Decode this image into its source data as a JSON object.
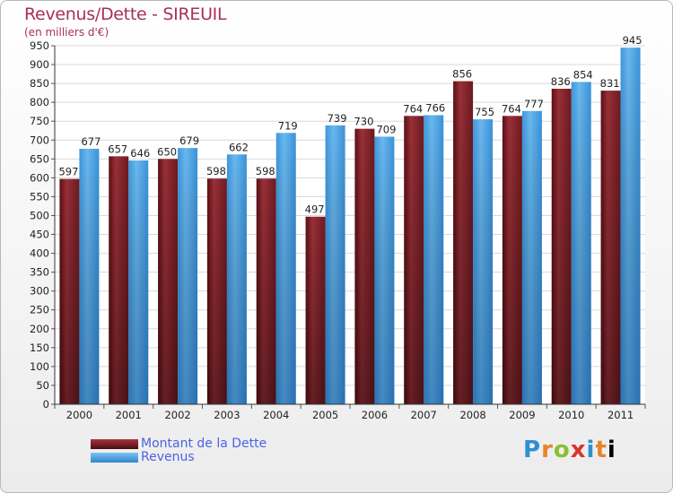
{
  "chart_data": {
    "type": "bar",
    "title": "Revenus/Dette - SIREUIL",
    "subtitle": "(en milliers d'€)",
    "categories": [
      "2000",
      "2001",
      "2002",
      "2003",
      "2004",
      "2005",
      "2006",
      "2007",
      "2008",
      "2009",
      "2010",
      "2011"
    ],
    "series": [
      {
        "name": "Montant de la Dette",
        "color": "#7a1f24",
        "values": [
          597,
          657,
          650,
          598,
          598,
          497,
          730,
          764,
          856,
          764,
          836,
          831
        ]
      },
      {
        "name": "Revenus",
        "color": "#4ba8e8",
        "values": [
          677,
          646,
          679,
          662,
          719,
          739,
          709,
          766,
          755,
          777,
          854,
          945
        ]
      }
    ],
    "ylim": [
      0,
      950
    ],
    "ytick_step": 50,
    "grid": true,
    "legend_position": "bottom-left"
  },
  "logo": {
    "letters": [
      "P",
      "r",
      "o",
      "x",
      "i",
      "t",
      "i"
    ]
  }
}
